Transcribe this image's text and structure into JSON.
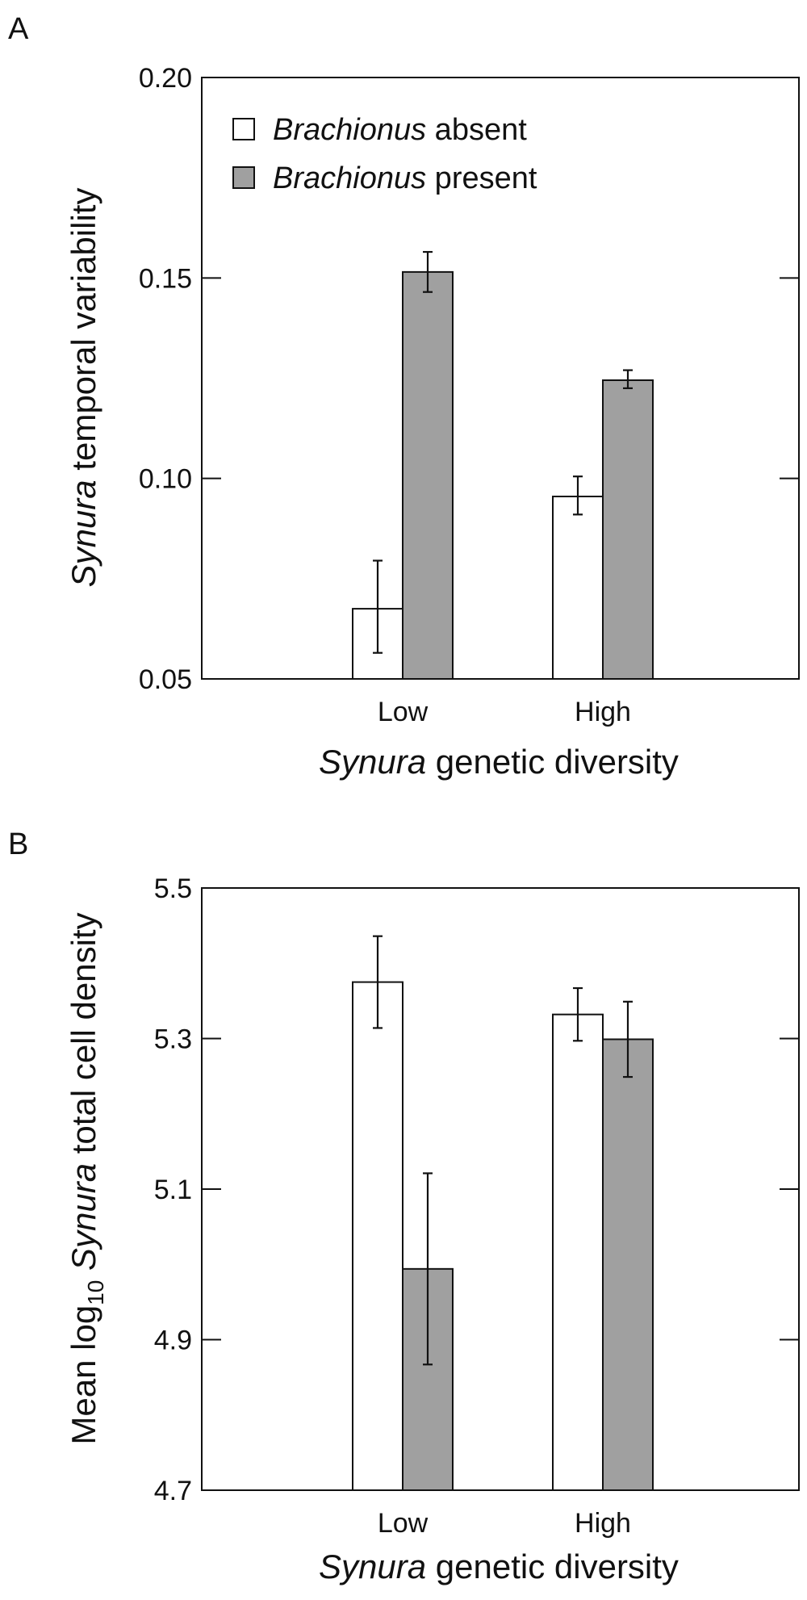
{
  "chart_data": [
    {
      "type": "bar",
      "panel": "A",
      "categories": [
        "Low",
        "High"
      ],
      "xlabel_italic": "Synura",
      "xlabel_rest": " genetic diversity",
      "ylabel_italic": "Synura",
      "ylabel_rest": " temporal variability",
      "ylim": [
        0.05,
        0.2
      ],
      "yticks": [
        0.05,
        0.1,
        0.15,
        0.2
      ],
      "ytick_labels": [
        "0.05",
        "0.10",
        "0.15",
        "0.20"
      ],
      "legend": {
        "placement": "top-left",
        "entries": [
          {
            "italic": "Brachionus",
            "rest": " absent"
          },
          {
            "italic": "Brachionus",
            "rest": " present"
          }
        ]
      },
      "series": [
        {
          "name": "Brachionus absent",
          "color": "#ffffff",
          "values": [
            0.0675,
            0.0955
          ],
          "err_low": [
            0.0565,
            0.091
          ],
          "err_high": [
            0.0795,
            0.1005
          ]
        },
        {
          "name": "Brachionus present",
          "color": "#a0a0a0",
          "values": [
            0.1515,
            0.1245
          ],
          "err_low": [
            0.1465,
            0.1225
          ],
          "err_high": [
            0.1565,
            0.127
          ]
        }
      ]
    },
    {
      "type": "bar",
      "panel": "B",
      "categories": [
        "Low",
        "High"
      ],
      "xlabel_italic": "Synura",
      "xlabel_rest": " genetic diversity",
      "ylabel_pre": "Mean log",
      "ylabel_sub": "10",
      "ylabel_italic": " Synura",
      "ylabel_rest": " total cell density",
      "ylim": [
        4.7,
        5.5
      ],
      "yticks": [
        4.7,
        4.9,
        5.1,
        5.3,
        5.5
      ],
      "ytick_labels": [
        "4.7",
        "4.9",
        "5.1",
        "5.3",
        "5.5"
      ],
      "series": [
        {
          "name": "Brachionus absent",
          "color": "#ffffff",
          "values": [
            5.375,
            5.332
          ],
          "err_low": [
            5.314,
            5.297
          ],
          "err_high": [
            5.436,
            5.367
          ]
        },
        {
          "name": "Brachionus present",
          "color": "#a0a0a0",
          "values": [
            4.994,
            5.299
          ],
          "err_low": [
            4.867,
            5.249
          ],
          "err_high": [
            5.121,
            5.349
          ]
        }
      ]
    }
  ]
}
